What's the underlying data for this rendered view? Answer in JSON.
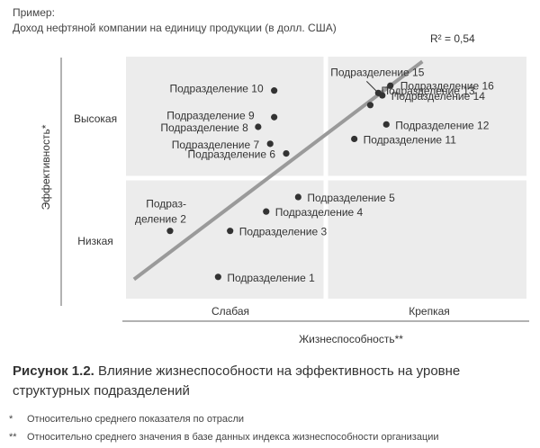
{
  "header": {
    "example": "Пример:",
    "subtitle": "Доход нефтяной компании на единицу продукции (в долл. США)"
  },
  "chart_data": {
    "type": "scatter",
    "xlabel": "Жизнеспособность**",
    "ylabel": "Эффективность*",
    "x_categories": [
      "Слабая",
      "Крепкая"
    ],
    "y_categories": [
      "Низкая",
      "Высокая"
    ],
    "xlim": [
      0,
      100
    ],
    "ylim": [
      0,
      100
    ],
    "grid": "2x2 quadrants",
    "trendline": {
      "label": "R² = 0,54",
      "r2": 0.54,
      "start": [
        2,
        8
      ],
      "end": [
        74,
        98
      ]
    },
    "points": [
      {
        "label": "Подразделение 1",
        "x": 23,
        "y": 9
      },
      {
        "label": "Подраз-\nделение 2",
        "x": 11,
        "y": 28
      },
      {
        "label": "Подразделение 3",
        "x": 26,
        "y": 28
      },
      {
        "label": "Подразделение 4",
        "x": 35,
        "y": 36
      },
      {
        "label": "Подразделение 5",
        "x": 43,
        "y": 42
      },
      {
        "label": "Подразделение 6",
        "x": 40,
        "y": 60
      },
      {
        "label": "Подразделение 7",
        "x": 36,
        "y": 64
      },
      {
        "label": "Подразделение 8",
        "x": 33,
        "y": 71
      },
      {
        "label": "Подразделение 9",
        "x": 37,
        "y": 75
      },
      {
        "label": "Подразделение 10",
        "x": 37,
        "y": 86
      },
      {
        "label": "Подразделение 11",
        "x": 57,
        "y": 66
      },
      {
        "label": "Подразделение 12",
        "x": 65,
        "y": 72
      },
      {
        "label": "Подразделение 13",
        "x": 61,
        "y": 80
      },
      {
        "label": "Подразделение 14",
        "x": 64,
        "y": 84
      },
      {
        "label": "Подразделение 15",
        "x": 63,
        "y": 85
      },
      {
        "label": "Подразделение 16",
        "x": 66,
        "y": 88
      }
    ]
  },
  "caption": {
    "figure_number": "Рисунок 1.2.",
    "title": "Влияние жизнеспособности на эффективность на уровне структурных подразделений"
  },
  "notes": [
    {
      "mark": "*",
      "text": "Относительно среднего показателя по отрасли"
    },
    {
      "mark": "**",
      "text": "Относительно среднего значения в базе данных индекса жизнеспособности организации"
    }
  ],
  "colors": {
    "quadrant": "#ececec",
    "trendline": "#9a9a9a",
    "point": "#333333",
    "axis": "#666666"
  }
}
